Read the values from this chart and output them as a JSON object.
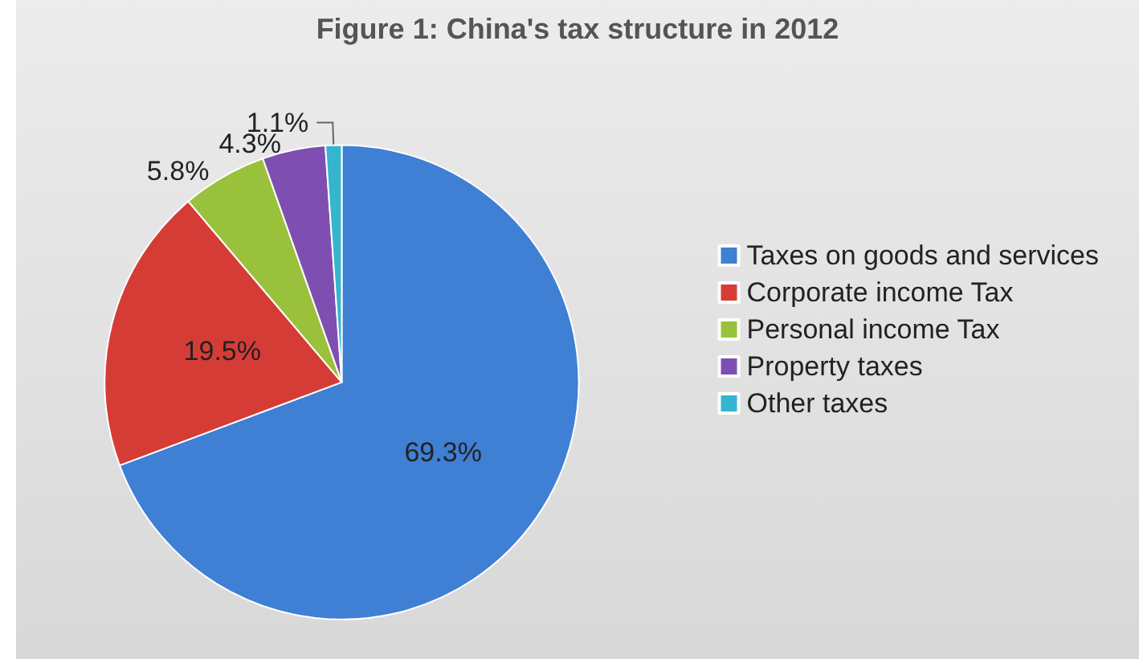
{
  "chart_data": {
    "type": "pie",
    "title": "Figure 1: China's tax structure in 2012",
    "categories": [
      "Taxes on goods and services",
      "Corporate income Tax",
      "Personal income Tax",
      "Property taxes",
      "Other taxes"
    ],
    "values": [
      69.3,
      19.5,
      5.8,
      4.3,
      1.1
    ],
    "colors": [
      "#3f7fd4",
      "#d63c36",
      "#9ac13c",
      "#7e4fb0",
      "#35b5cf"
    ],
    "value_labels": [
      "69.3%",
      "19.5%",
      "5.8%",
      "4.3%",
      "1.1%"
    ],
    "legend": "right"
  }
}
